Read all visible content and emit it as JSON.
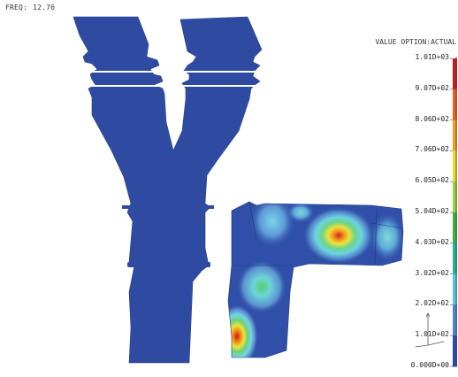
{
  "frequency": {
    "label": "FREQ:",
    "value": "12.76"
  },
  "legend": {
    "title": "VALUE OPTION:ACTUAL",
    "labels": [
      "1.01D+03",
      "9.07D+02",
      "8.06D+02",
      "7.06D+02",
      "6.05D+02",
      "5.04D+02",
      "4.03D+02",
      "3.02D+02",
      "2.02D+02",
      "1.01D+02",
      "0.000D+00"
    ],
    "colors": [
      "#cc1a1a",
      "#e8621c",
      "#f0a020",
      "#e8dc30",
      "#9cd43a",
      "#3cb14a",
      "#27b39a",
      "#58c7dc",
      "#4f86c8",
      "#2c4aa8"
    ]
  },
  "colors": {
    "mesh_blue": "#2f4ba1"
  }
}
